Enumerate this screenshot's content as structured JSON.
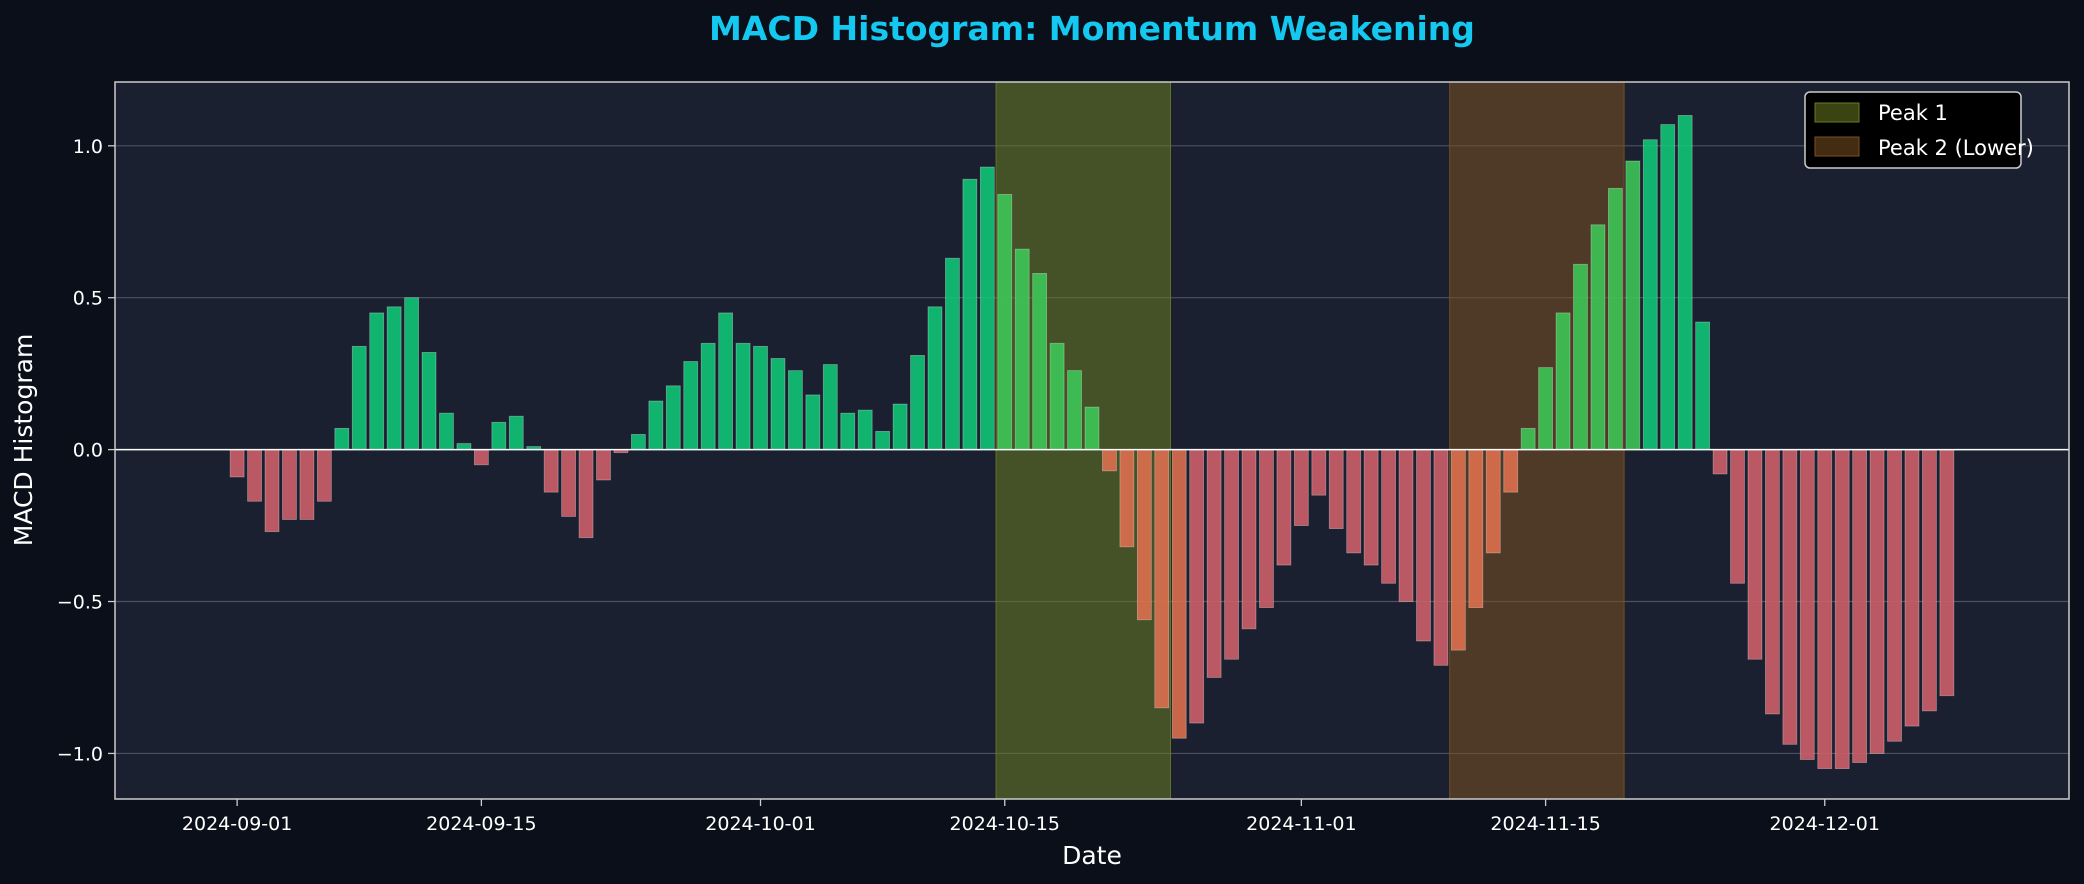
{
  "chart_data": {
    "type": "bar",
    "title": "MACD Histogram: Momentum Weakening",
    "xlabel": "Date",
    "ylabel": "MACD Histogram",
    "ylim": [
      -1.15,
      1.21
    ],
    "yticks": [
      1.0,
      0.5,
      0.0,
      -0.5,
      -1.0
    ],
    "ytick_labels": [
      "1.0",
      "0.5",
      "0.0",
      "−0.5",
      "−1.0"
    ],
    "xlim_start": "2024-08-25",
    "xlim_end": "2024-12-15",
    "xticks": [
      "2024-09-01",
      "2024-09-15",
      "2024-10-01",
      "2024-10-15",
      "2024-11-01",
      "2024-11-15",
      "2024-12-01"
    ],
    "grid": "horizontal",
    "legend_position": "upper right",
    "colors": {
      "positive": "#10c878",
      "negative": "#d0606a",
      "highlight_positive": "#3cc858",
      "highlight_negative": "#e07050",
      "title": "#14c8f0",
      "plot_bg": "#1a2030",
      "figure_bg": "#0b0f19"
    },
    "highlights": [
      {
        "label": "Peak 1",
        "start": "2024-10-15",
        "end": "2024-10-25",
        "color": "#6a7a20"
      },
      {
        "label": "Peak 2 (Lower)",
        "start": "2024-11-10",
        "end": "2024-11-20",
        "color": "#7a5020"
      }
    ],
    "start_date": "2024-09-01",
    "dates": [
      "2024-09-01",
      "2024-09-02",
      "2024-09-03",
      "2024-09-04",
      "2024-09-05",
      "2024-09-06",
      "2024-09-07",
      "2024-09-08",
      "2024-09-09",
      "2024-09-10",
      "2024-09-11",
      "2024-09-12",
      "2024-09-13",
      "2024-09-14",
      "2024-09-15",
      "2024-09-16",
      "2024-09-17",
      "2024-09-18",
      "2024-09-19",
      "2024-09-20",
      "2024-09-21",
      "2024-09-22",
      "2024-09-23",
      "2024-09-24",
      "2024-09-25",
      "2024-09-26",
      "2024-09-27",
      "2024-09-28",
      "2024-09-29",
      "2024-09-30",
      "2024-10-01",
      "2024-10-02",
      "2024-10-03",
      "2024-10-04",
      "2024-10-05",
      "2024-10-06",
      "2024-10-07",
      "2024-10-08",
      "2024-10-09",
      "2024-10-10",
      "2024-10-11",
      "2024-10-12",
      "2024-10-13",
      "2024-10-14",
      "2024-10-15",
      "2024-10-16",
      "2024-10-17",
      "2024-10-18",
      "2024-10-19",
      "2024-10-20",
      "2024-10-21",
      "2024-10-22",
      "2024-10-23",
      "2024-10-24",
      "2024-10-25",
      "2024-10-26",
      "2024-10-27",
      "2024-10-28",
      "2024-10-29",
      "2024-10-30",
      "2024-10-31",
      "2024-11-01",
      "2024-11-02",
      "2024-11-03",
      "2024-11-04",
      "2024-11-05",
      "2024-11-06",
      "2024-11-07",
      "2024-11-08",
      "2024-11-09",
      "2024-11-10",
      "2024-11-11",
      "2024-11-12",
      "2024-11-13",
      "2024-11-14",
      "2024-11-15",
      "2024-11-16",
      "2024-11-17",
      "2024-11-18",
      "2024-11-19",
      "2024-11-20",
      "2024-11-21",
      "2024-11-22",
      "2024-11-23",
      "2024-11-24",
      "2024-11-25",
      "2024-11-26",
      "2024-11-27",
      "2024-11-28",
      "2024-11-29",
      "2024-11-30",
      "2024-12-01",
      "2024-12-02",
      "2024-12-03",
      "2024-12-04",
      "2024-12-05",
      "2024-12-06",
      "2024-12-07",
      "2024-12-08"
    ],
    "values": [
      -0.09,
      -0.17,
      -0.27,
      -0.23,
      -0.23,
      -0.17,
      0.07,
      0.34,
      0.45,
      0.47,
      0.5,
      0.32,
      0.12,
      0.02,
      -0.05,
      0.09,
      0.11,
      0.01,
      -0.14,
      -0.22,
      -0.29,
      -0.1,
      -0.01,
      0.05,
      0.16,
      0.21,
      0.29,
      0.35,
      0.45,
      0.35,
      0.34,
      0.3,
      0.26,
      0.18,
      0.28,
      0.12,
      0.13,
      0.06,
      0.15,
      0.31,
      0.47,
      0.63,
      0.89,
      0.93,
      0.84,
      0.66,
      0.58,
      0.35,
      0.26,
      0.14,
      -0.07,
      -0.32,
      -0.56,
      -0.85,
      -0.95,
      -0.9,
      -0.75,
      -0.69,
      -0.59,
      -0.52,
      -0.38,
      -0.25,
      -0.15,
      -0.26,
      -0.34,
      -0.38,
      -0.44,
      -0.5,
      -0.63,
      -0.71,
      -0.66,
      -0.52,
      -0.34,
      -0.14,
      0.07,
      0.27,
      0.45,
      0.61,
      0.74,
      0.86,
      0.95,
      1.02,
      1.07,
      1.1,
      0.42,
      -0.08,
      -0.44,
      -0.69,
      -0.87,
      -0.97,
      -1.02,
      -1.05,
      -1.05,
      -1.03,
      -1.0,
      -0.96,
      -0.91,
      -0.86,
      -0.81
    ]
  }
}
